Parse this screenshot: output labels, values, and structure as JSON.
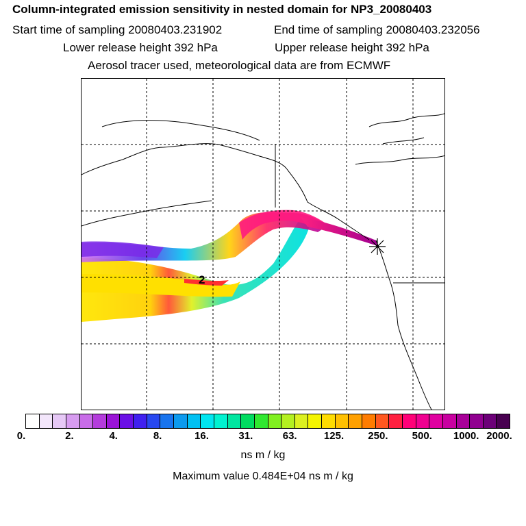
{
  "header": {
    "title": "Column-integrated emission sensitivity in nested domain for NP3_20080403",
    "start_time": "Start time of sampling 20080403.231902",
    "end_time": "End time of sampling 20080403.232056",
    "lower_release": "Lower release height  392 hPa",
    "upper_release": "Upper release height  392 hPa",
    "model_info": "Aerosol tracer used, meteorological data are from ECMWF"
  },
  "map": {
    "label": "2",
    "grid": true
  },
  "colorbar": {
    "ticks": [
      "0.",
      "2.",
      "4.",
      "8.",
      "16.",
      "31.",
      "63.",
      "125.",
      "250.",
      "500.",
      "1000.",
      "2000."
    ],
    "colors": [
      "#ffffff",
      "#f3e6fb",
      "#e6c8f6",
      "#d79cf0",
      "#c86ce8",
      "#b43cdc",
      "#9a14d6",
      "#6a10e6",
      "#4020f0",
      "#2848f0",
      "#1874ee",
      "#0c9aee",
      "#00c0f2",
      "#00e6f0",
      "#00f2d0",
      "#00e6a0",
      "#00dc60",
      "#30e830",
      "#80f020",
      "#b4f020",
      "#dcf020",
      "#f4f400",
      "#ffdc00",
      "#ffc000",
      "#ffa000",
      "#ff7c00",
      "#ff5820",
      "#ff2040",
      "#ff0078",
      "#f00090",
      "#e000a0",
      "#c800a0",
      "#a80098",
      "#900090",
      "#6c0078",
      "#480050"
    ],
    "units": "ns m / kg",
    "max_value": "Maximum value  0.484E+04 ns m / kg"
  }
}
